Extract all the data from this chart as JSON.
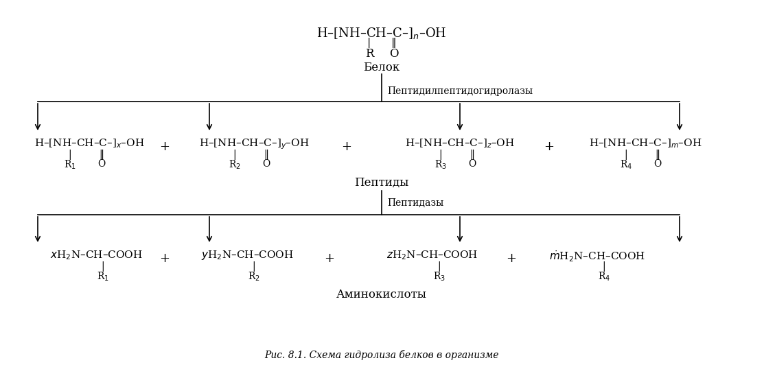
{
  "background": "#ffffff",
  "figsize": [
    11.13,
    5.35
  ],
  "dpi": 100,
  "title_caption": "Рис. 8.1. Схема гидролиза белков в организме",
  "protein_label": "Белок",
  "enzyme1_label": "Пептидилпептидогидролазы",
  "peptides_label": "Пептиды",
  "enzyme2_label": "Пептидазы",
  "amino_label": "Аминокислоты"
}
